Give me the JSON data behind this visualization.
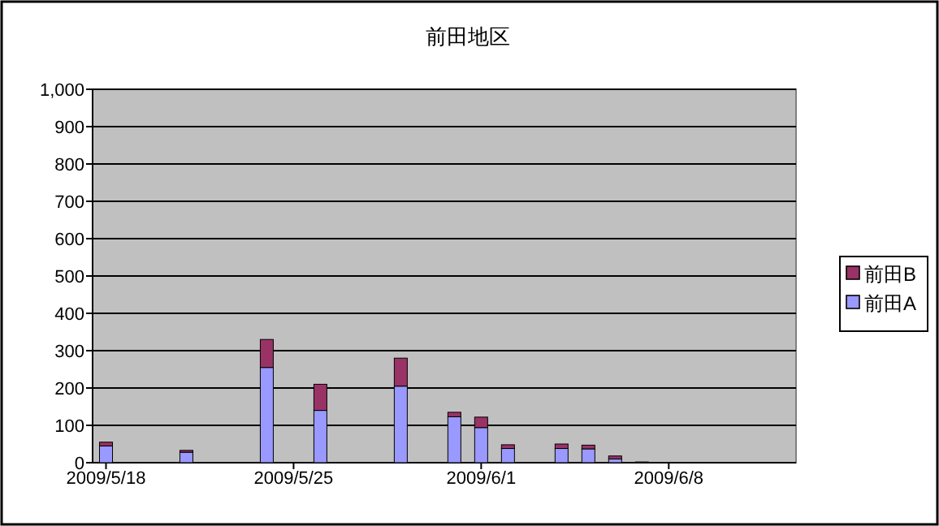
{
  "chart_data": {
    "type": "bar",
    "title": "前田地区",
    "stacked": true,
    "x": [
      "2009-05-18",
      "2009-05-21",
      "2009-05-24",
      "2009-05-26",
      "2009-05-29",
      "2009-05-31",
      "2009-06-01",
      "2009-06-02",
      "2009-06-04",
      "2009-06-05",
      "2009-06-06",
      "2009-06-07",
      "2009-06-09",
      "2009-06-11"
    ],
    "series": [
      {
        "name": "前田A",
        "color": "#9999ff",
        "values": [
          45,
          28,
          255,
          140,
          205,
          123,
          94,
          38,
          38,
          37,
          10,
          null,
          0,
          null
        ]
      },
      {
        "name": "前田B",
        "color": "#993366",
        "values": [
          10,
          5,
          75,
          70,
          75,
          12,
          28,
          10,
          12,
          10,
          8,
          2,
          null,
          0
        ]
      }
    ],
    "xlim": [
      "2009-05-17T12:00",
      "2009-06-12T18:00"
    ],
    "xticks": [
      {
        "value": "2009-05-18",
        "label": "2009/5/18"
      },
      {
        "value": "2009-05-25",
        "label": "2009/5/25"
      },
      {
        "value": "2009-06-01",
        "label": "2009/6/1"
      },
      {
        "value": "2009-06-08",
        "label": "2009/6/8"
      }
    ],
    "ylim": [
      0,
      1000
    ],
    "yticks": [
      0,
      100,
      200,
      300,
      400,
      500,
      600,
      700,
      800,
      900,
      {
        "value": 1000,
        "label": "1,000"
      }
    ],
    "grid": "y",
    "legend": "right"
  }
}
